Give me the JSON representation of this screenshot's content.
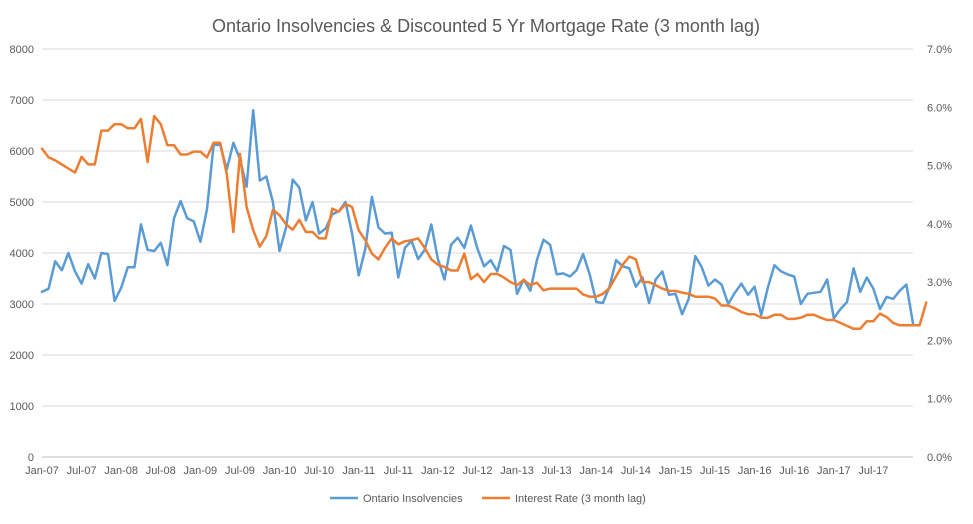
{
  "chart_data": {
    "type": "line",
    "title": "Ontario Insolvencies & Discounted 5 Yr Mortgage Rate  (3 month lag)",
    "xlabel": "",
    "ylabel": "",
    "y2label": "",
    "ylim": [
      0,
      8000
    ],
    "yticks": [
      "0",
      "1000",
      "2000",
      "3000",
      "4000",
      "5000",
      "6000",
      "7000",
      "8000"
    ],
    "y2lim": [
      0,
      7
    ],
    "y2ticks": [
      "0.0%",
      "1.0%",
      "2.0%",
      "3.0%",
      "4.0%",
      "5.0%",
      "6.0%",
      "7.0%"
    ],
    "x_tick_labels": [
      "Jan-07",
      "Jul-07",
      "Jan-08",
      "Jul-08",
      "Jan-09",
      "Jul-09",
      "Jan-10",
      "Jul-10",
      "Jan-11",
      "Jul-11",
      "Jan-12",
      "Jul-12",
      "Jan-13",
      "Jul-13",
      "Jan-14",
      "Jul-14",
      "Jan-15",
      "Jul-15",
      "Jan-16",
      "Jul-16",
      "Jan-17",
      "Jul-17"
    ],
    "x_start": "Jan-07",
    "grid": "horizontal",
    "legend_position": "bottom",
    "series": [
      {
        "name": "Ontario Insolvencies",
        "axis": "left",
        "color": "#5B9BD5",
        "values": [
          3240,
          3300,
          3840,
          3660,
          4000,
          3640,
          3400,
          3780,
          3500,
          4000,
          3980,
          3060,
          3320,
          3720,
          3720,
          4560,
          4060,
          4040,
          4200,
          3760,
          4680,
          5020,
          4680,
          4620,
          4220,
          4860,
          6120,
          6120,
          5640,
          6160,
          5840,
          5300,
          6800,
          5420,
          5500,
          5000,
          4040,
          4500,
          5440,
          5280,
          4640,
          5000,
          4380,
          4480,
          4760,
          4820,
          5000,
          4380,
          3560,
          4080,
          5100,
          4500,
          4380,
          4400,
          3520,
          4100,
          4240,
          3880,
          4060,
          4560,
          3880,
          3480,
          4160,
          4300,
          4100,
          4540,
          4080,
          3740,
          3860,
          3640,
          4140,
          4060,
          3200,
          3480,
          3260,
          3860,
          4260,
          4160,
          3580,
          3600,
          3540,
          3660,
          3980,
          3580,
          3040,
          3020,
          3340,
          3860,
          3740,
          3700,
          3340,
          3520,
          3020,
          3480,
          3640,
          3180,
          3200,
          2800,
          3100,
          3940,
          3720,
          3360,
          3480,
          3380,
          3000,
          3220,
          3400,
          3180,
          3340,
          2780,
          3320,
          3760,
          3640,
          3580,
          3540,
          3000,
          3200,
          3220,
          3240,
          3480,
          2720,
          2900,
          3040,
          3700,
          3240,
          3520,
          3300,
          2900,
          3140,
          3100,
          3260,
          3380,
          2620
        ]
      },
      {
        "name": "Interest Rate (3 month lag)",
        "axis": "right",
        "color": "#ED7D31",
        "values": [
          5.29,
          5.14,
          5.09,
          5.02,
          4.95,
          4.88,
          5.15,
          5.02,
          5.02,
          5.6,
          5.6,
          5.71,
          5.71,
          5.64,
          5.64,
          5.8,
          5.06,
          5.85,
          5.71,
          5.35,
          5.35,
          5.19,
          5.19,
          5.24,
          5.24,
          5.14,
          5.39,
          5.39,
          4.85,
          3.86,
          5.2,
          4.29,
          3.89,
          3.61,
          3.79,
          4.24,
          4.15,
          3.99,
          3.9,
          4.07,
          3.86,
          3.86,
          3.75,
          3.75,
          4.26,
          4.21,
          4.34,
          4.29,
          3.89,
          3.72,
          3.49,
          3.39,
          3.59,
          3.75,
          3.65,
          3.7,
          3.72,
          3.75,
          3.59,
          3.39,
          3.3,
          3.26,
          3.2,
          3.2,
          3.49,
          3.05,
          3.14,
          3.0,
          3.14,
          3.14,
          3.08,
          3.0,
          2.95,
          3.04,
          2.95,
          2.99,
          2.86,
          2.89,
          2.89,
          2.89,
          2.89,
          2.89,
          2.79,
          2.75,
          2.75,
          2.8,
          2.9,
          3.1,
          3.3,
          3.44,
          3.39,
          3.0,
          3.0,
          2.95,
          2.89,
          2.85,
          2.85,
          2.82,
          2.8,
          2.75,
          2.75,
          2.75,
          2.72,
          2.6,
          2.6,
          2.55,
          2.49,
          2.45,
          2.45,
          2.39,
          2.39,
          2.44,
          2.44,
          2.37,
          2.37,
          2.39,
          2.44,
          2.44,
          2.39,
          2.35,
          2.35,
          2.3,
          2.25,
          2.2,
          2.2,
          2.33,
          2.33,
          2.46,
          2.4,
          2.3,
          2.26,
          2.26,
          2.26,
          2.26,
          2.65
        ]
      }
    ]
  }
}
